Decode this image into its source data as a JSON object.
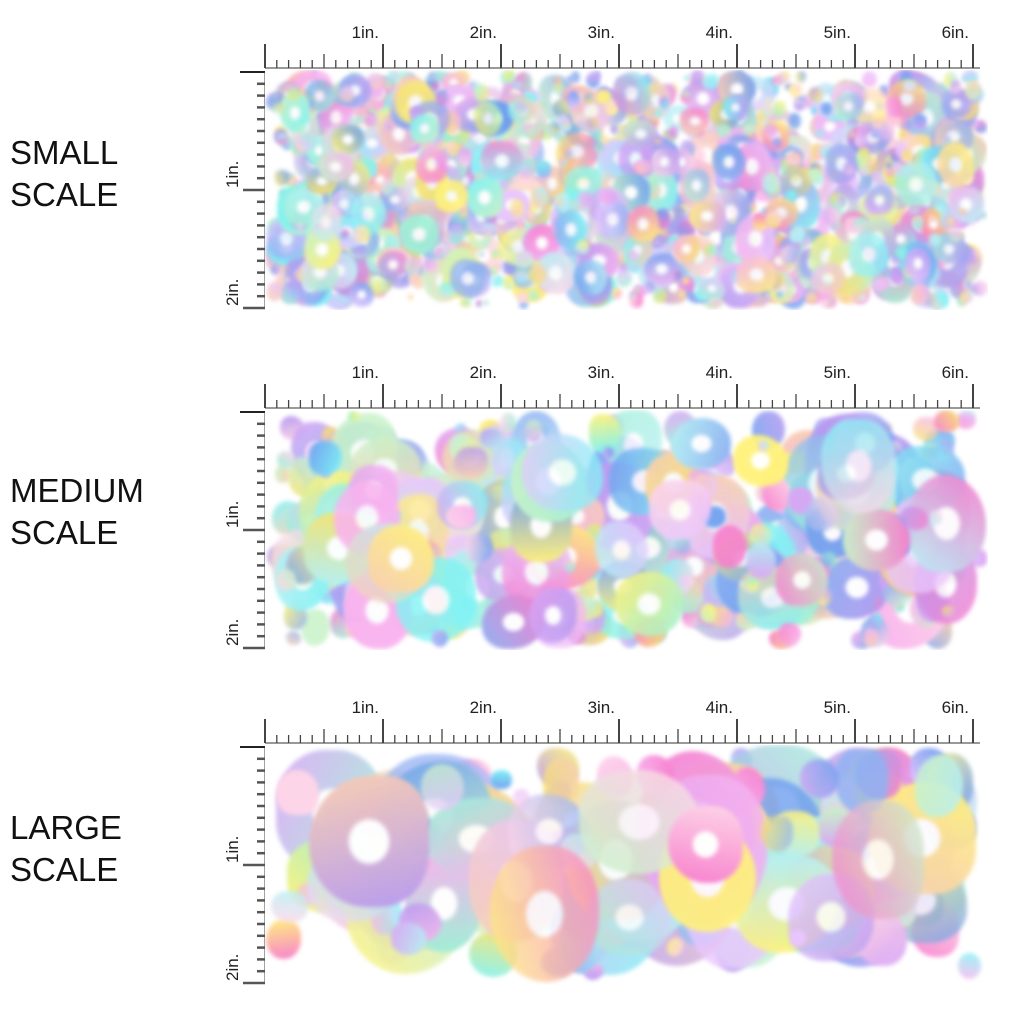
{
  "panels": [
    {
      "label_line1": "SMALL",
      "label_line2": "SCALE",
      "spot_scale": 0.45,
      "seed": 7
    },
    {
      "label_line1": "MEDIUM",
      "label_line2": "SCALE",
      "spot_scale": 0.85,
      "seed": 21
    },
    {
      "label_line1": "LARGE",
      "label_line2": "SCALE",
      "spot_scale": 1.35,
      "seed": 42
    }
  ],
  "ruler": {
    "horizontal_labels": [
      "1in.",
      "2in.",
      "3in.",
      "4in.",
      "5in.",
      "6in."
    ],
    "vertical_labels": [
      "1in.",
      "2in."
    ]
  },
  "palette": [
    "#f77fce",
    "#f9b3ef",
    "#d9a6f5",
    "#b79af0",
    "#8fb2f2",
    "#6f9ff0",
    "#7ff3f5",
    "#9ef0d6",
    "#c9f2c9",
    "#fff27a",
    "#f7e36a",
    "#f9cfb3",
    "#ffd6e8",
    "#e9c6ff",
    "#b6f0f5"
  ]
}
